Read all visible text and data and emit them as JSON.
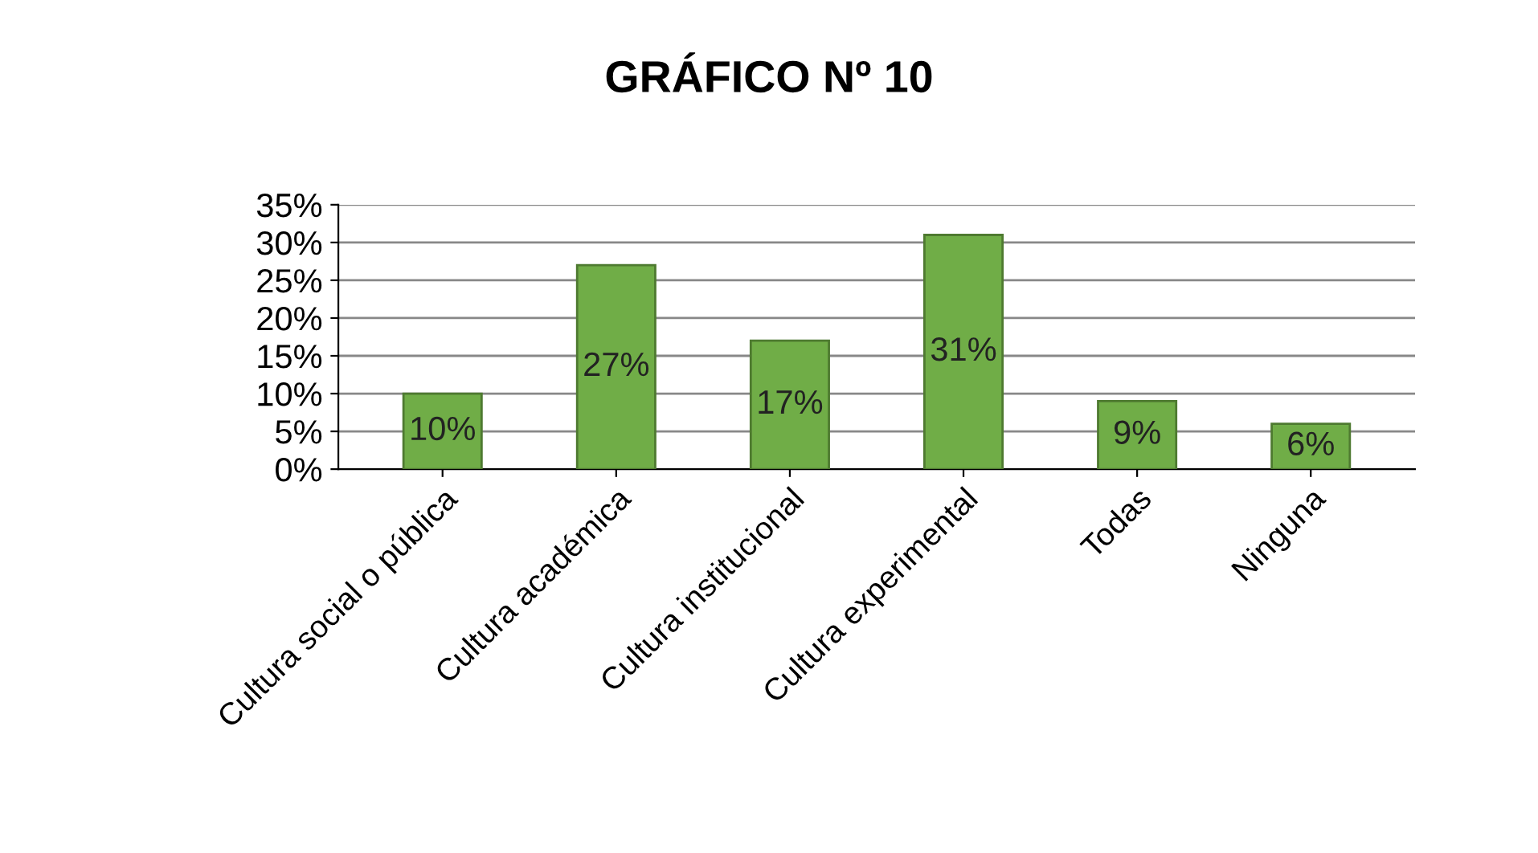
{
  "chart_data": {
    "type": "bar",
    "title": "GRÁFICO Nº 10",
    "categories": [
      "Cultura social o pública",
      "Cultura académica",
      "Cultura institucional",
      "Cultura experimental",
      "Todas",
      "Ninguna"
    ],
    "values": [
      10,
      27,
      17,
      31,
      9,
      6
    ],
    "value_labels": [
      "10%",
      "27%",
      "17%",
      "31%",
      "9%",
      "6%"
    ],
    "color": "#70ad47",
    "ylim": [
      0,
      35
    ],
    "yticks": [
      {
        "value": 0,
        "label": "0%"
      },
      {
        "value": 5,
        "label": "5%"
      },
      {
        "value": 10,
        "label": "10%"
      },
      {
        "value": 15,
        "label": "15%"
      },
      {
        "value": 20,
        "label": "20%"
      },
      {
        "value": 25,
        "label": "25%"
      },
      {
        "value": 30,
        "label": "30%"
      },
      {
        "value": 35,
        "label": "35%"
      }
    ],
    "grid": "y"
  }
}
